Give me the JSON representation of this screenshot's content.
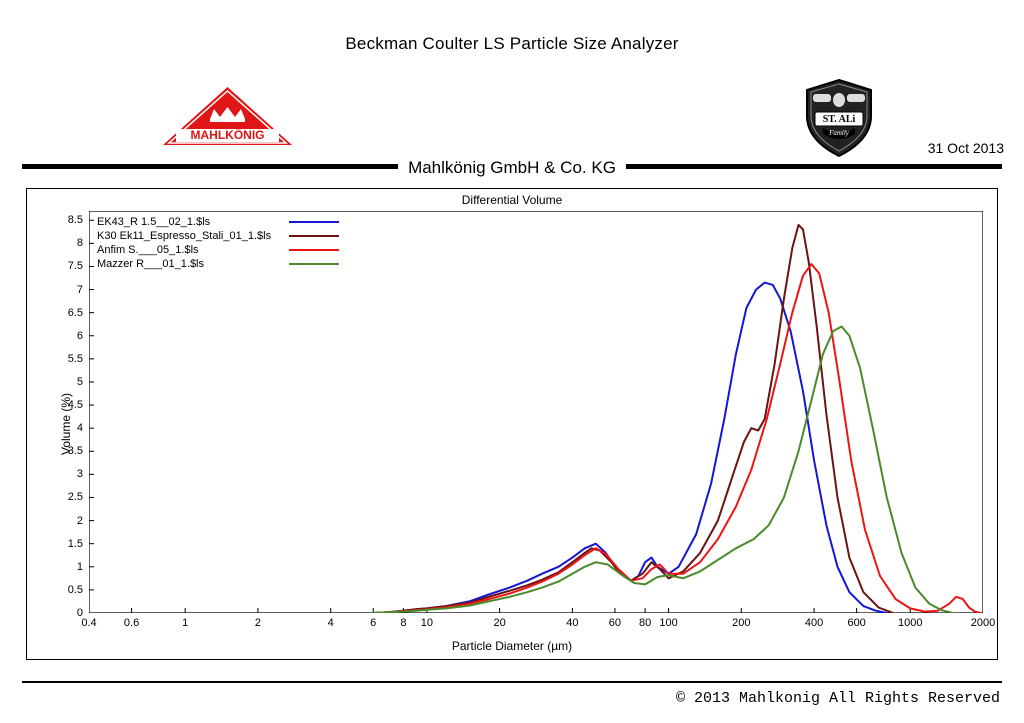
{
  "header": {
    "main_title": "Beckman Coulter  LS Particle Size Analyzer",
    "subtitle": "Mahlkönig GmbH & Co. KG",
    "date": "31 Oct 2013",
    "logo_left_brand": "MAHLKÖNIG",
    "logo_right_brand_line1": "ST. ALi",
    "logo_right_brand_line2": "Family"
  },
  "footer": {
    "copyright": "© 2013 Mahlkonig All Rights Reserved"
  },
  "chart": {
    "type": "line",
    "title": "Differential Volume",
    "xlabel": "Particle Diameter (µm)",
    "ylabel": "Volume (%)",
    "x_scale": "log",
    "xlim": [
      0.4,
      2000
    ],
    "ylim": [
      0,
      8.7
    ],
    "y_ticks": [
      0,
      0.5,
      1,
      1.5,
      2,
      2.5,
      3,
      3.5,
      4,
      4.5,
      5,
      5.5,
      6,
      6.5,
      7,
      7.5,
      8,
      8.5
    ],
    "x_ticks": [
      0.4,
      0.6,
      1,
      2,
      4,
      6,
      8,
      10,
      20,
      40,
      60,
      80,
      100,
      200,
      400,
      600,
      1000,
      2000
    ],
    "x_tick_labels": [
      "0.4",
      "0.6",
      "1",
      "2",
      "4",
      "6",
      "8",
      "10",
      "20",
      "40",
      "60",
      "80",
      "100",
      "200",
      "400",
      "600",
      "1000",
      "2000"
    ],
    "background_color": "#ffffff",
    "axis_color": "#000000",
    "tick_fontsize": 11,
    "label_fontsize": 12,
    "title_fontsize": 12,
    "line_width": 2,
    "legend_fontsize": 11,
    "legend_position": "upper-left",
    "series": [
      {
        "name": "EK43_R 1.5__02_1.$ls",
        "color": "#1515d6",
        "data": [
          [
            6,
            0
          ],
          [
            7,
            0.02
          ],
          [
            8,
            0.05
          ],
          [
            9,
            0.08
          ],
          [
            10,
            0.1
          ],
          [
            12,
            0.15
          ],
          [
            15,
            0.25
          ],
          [
            18,
            0.4
          ],
          [
            22,
            0.55
          ],
          [
            26,
            0.7
          ],
          [
            30,
            0.85
          ],
          [
            35,
            1.0
          ],
          [
            40,
            1.2
          ],
          [
            45,
            1.4
          ],
          [
            50,
            1.5
          ],
          [
            55,
            1.3
          ],
          [
            60,
            1.0
          ],
          [
            65,
            0.8
          ],
          [
            70,
            0.7
          ],
          [
            75,
            0.8
          ],
          [
            80,
            1.1
          ],
          [
            85,
            1.2
          ],
          [
            90,
            1.0
          ],
          [
            100,
            0.85
          ],
          [
            110,
            1.0
          ],
          [
            130,
            1.7
          ],
          [
            150,
            2.8
          ],
          [
            170,
            4.2
          ],
          [
            190,
            5.6
          ],
          [
            210,
            6.6
          ],
          [
            230,
            7.0
          ],
          [
            250,
            7.15
          ],
          [
            270,
            7.1
          ],
          [
            290,
            6.8
          ],
          [
            320,
            6.1
          ],
          [
            360,
            4.8
          ],
          [
            400,
            3.3
          ],
          [
            450,
            1.9
          ],
          [
            500,
            1.0
          ],
          [
            560,
            0.45
          ],
          [
            640,
            0.15
          ],
          [
            720,
            0.05
          ],
          [
            800,
            0
          ]
        ]
      },
      {
        "name": "K30 Ek11_Espresso_Stali_01_1.$ls",
        "color": "#6a1414",
        "data": [
          [
            6,
            0
          ],
          [
            7,
            0.02
          ],
          [
            8,
            0.05
          ],
          [
            9,
            0.08
          ],
          [
            10,
            0.1
          ],
          [
            12,
            0.15
          ],
          [
            15,
            0.22
          ],
          [
            18,
            0.35
          ],
          [
            22,
            0.48
          ],
          [
            26,
            0.6
          ],
          [
            30,
            0.72
          ],
          [
            35,
            0.88
          ],
          [
            40,
            1.1
          ],
          [
            45,
            1.3
          ],
          [
            48,
            1.4
          ],
          [
            52,
            1.35
          ],
          [
            58,
            1.1
          ],
          [
            63,
            0.85
          ],
          [
            70,
            0.7
          ],
          [
            78,
            0.85
          ],
          [
            85,
            1.1
          ],
          [
            92,
            0.95
          ],
          [
            100,
            0.75
          ],
          [
            115,
            0.9
          ],
          [
            135,
            1.3
          ],
          [
            160,
            2.0
          ],
          [
            185,
            3.0
          ],
          [
            205,
            3.7
          ],
          [
            220,
            4.0
          ],
          [
            235,
            3.95
          ],
          [
            250,
            4.2
          ],
          [
            275,
            5.4
          ],
          [
            300,
            6.8
          ],
          [
            325,
            7.9
          ],
          [
            345,
            8.4
          ],
          [
            360,
            8.3
          ],
          [
            380,
            7.6
          ],
          [
            410,
            6.2
          ],
          [
            450,
            4.3
          ],
          [
            500,
            2.5
          ],
          [
            560,
            1.2
          ],
          [
            640,
            0.45
          ],
          [
            740,
            0.12
          ],
          [
            850,
            0
          ]
        ]
      },
      {
        "name": "Anfim S.___05_1.$ls",
        "color": "#ef1414",
        "data": [
          [
            6,
            0
          ],
          [
            7,
            0.02
          ],
          [
            8,
            0.04
          ],
          [
            9,
            0.06
          ],
          [
            10,
            0.08
          ],
          [
            12,
            0.12
          ],
          [
            15,
            0.2
          ],
          [
            18,
            0.3
          ],
          [
            22,
            0.42
          ],
          [
            26,
            0.55
          ],
          [
            30,
            0.68
          ],
          [
            35,
            0.85
          ],
          [
            40,
            1.05
          ],
          [
            45,
            1.25
          ],
          [
            50,
            1.4
          ],
          [
            55,
            1.28
          ],
          [
            62,
            0.95
          ],
          [
            70,
            0.7
          ],
          [
            78,
            0.75
          ],
          [
            85,
            0.95
          ],
          [
            92,
            1.05
          ],
          [
            100,
            0.85
          ],
          [
            115,
            0.85
          ],
          [
            135,
            1.1
          ],
          [
            160,
            1.6
          ],
          [
            190,
            2.3
          ],
          [
            220,
            3.1
          ],
          [
            255,
            4.2
          ],
          [
            290,
            5.4
          ],
          [
            325,
            6.5
          ],
          [
            360,
            7.3
          ],
          [
            390,
            7.55
          ],
          [
            420,
            7.35
          ],
          [
            460,
            6.5
          ],
          [
            510,
            5.0
          ],
          [
            570,
            3.3
          ],
          [
            650,
            1.8
          ],
          [
            750,
            0.8
          ],
          [
            870,
            0.3
          ],
          [
            1000,
            0.1
          ],
          [
            1150,
            0.03
          ],
          [
            1300,
            0.05
          ],
          [
            1450,
            0.2
          ],
          [
            1550,
            0.35
          ],
          [
            1650,
            0.3
          ],
          [
            1750,
            0.12
          ],
          [
            1850,
            0.03
          ],
          [
            1950,
            0
          ]
        ]
      },
      {
        "name": "Mazzer R___01_1.$ls",
        "color": "#4a8a2a",
        "data": [
          [
            6,
            0
          ],
          [
            7,
            0.02
          ],
          [
            8,
            0.03
          ],
          [
            9,
            0.05
          ],
          [
            10,
            0.07
          ],
          [
            12,
            0.1
          ],
          [
            15,
            0.16
          ],
          [
            18,
            0.25
          ],
          [
            22,
            0.35
          ],
          [
            26,
            0.45
          ],
          [
            30,
            0.55
          ],
          [
            35,
            0.68
          ],
          [
            40,
            0.85
          ],
          [
            45,
            1.0
          ],
          [
            50,
            1.1
          ],
          [
            56,
            1.05
          ],
          [
            63,
            0.85
          ],
          [
            72,
            0.65
          ],
          [
            80,
            0.62
          ],
          [
            90,
            0.78
          ],
          [
            100,
            0.82
          ],
          [
            115,
            0.75
          ],
          [
            135,
            0.9
          ],
          [
            160,
            1.15
          ],
          [
            190,
            1.4
          ],
          [
            225,
            1.6
          ],
          [
            260,
            1.9
          ],
          [
            300,
            2.5
          ],
          [
            345,
            3.5
          ],
          [
            390,
            4.6
          ],
          [
            435,
            5.6
          ],
          [
            480,
            6.1
          ],
          [
            520,
            6.2
          ],
          [
            560,
            6.0
          ],
          [
            620,
            5.3
          ],
          [
            700,
            4.0
          ],
          [
            800,
            2.5
          ],
          [
            920,
            1.3
          ],
          [
            1050,
            0.55
          ],
          [
            1200,
            0.2
          ],
          [
            1350,
            0.06
          ],
          [
            1500,
            0
          ]
        ]
      }
    ]
  }
}
